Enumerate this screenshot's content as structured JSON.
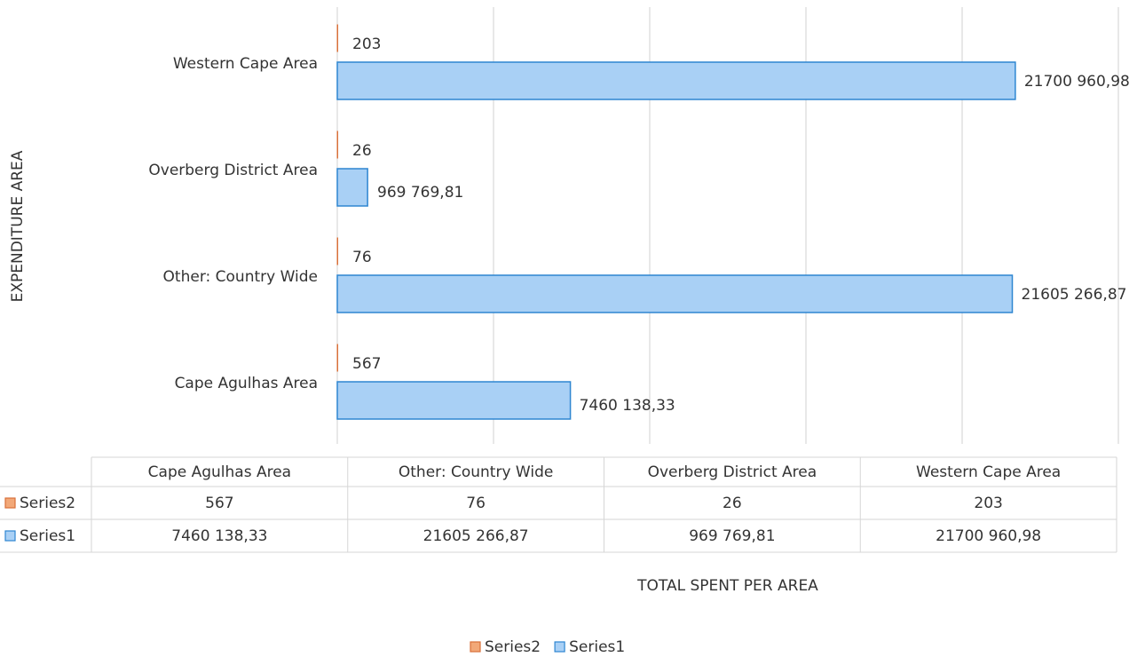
{
  "chart_data": {
    "type": "barh",
    "categories": [
      "Cape Agulhas Area",
      "Other: Country Wide",
      "Overberg District Area",
      "Western Cape Area"
    ],
    "series": [
      {
        "name": "Series1",
        "color": "#a9d0f5",
        "values": [
          7460138.33,
          21605266.87,
          969769.81,
          21700960.98
        ],
        "value_labels": [
          "7460 138,33",
          "21605 266,87",
          "969 769,81",
          "21700 960,98"
        ]
      },
      {
        "name": "Series2",
        "color": "#f2a878",
        "values": [
          567,
          76,
          26,
          203
        ]
      }
    ],
    "xlim": [
      0,
      25000000
    ],
    "xticks": [
      0,
      5000000,
      10000000,
      15000000,
      20000000,
      25000000
    ],
    "grid": true,
    "x_label": "TOTAL SPENT PER AREA",
    "y_label": "EXPENDITURE AREA",
    "legend": "bottom"
  }
}
